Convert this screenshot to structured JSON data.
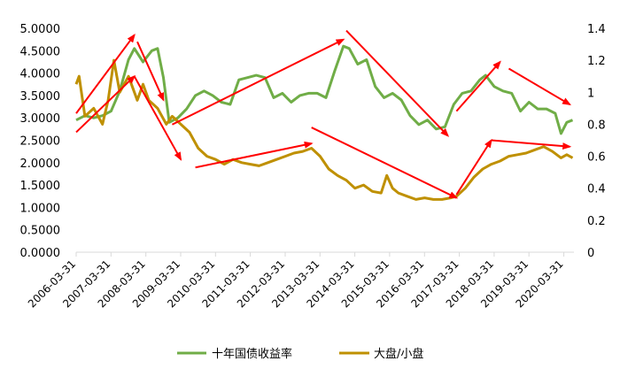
{
  "chart_data": {
    "type": "line",
    "x_ticks": [
      "2006-03-31",
      "2007-03-31",
      "2008-03-31",
      "2009-03-31",
      "2010-03-31",
      "2011-03-31",
      "2012-03-31",
      "2013-03-31",
      "2014-03-31",
      "2015-03-31",
      "2016-03-31",
      "2017-03-31",
      "2018-03-31",
      "2019-03-31",
      "2020-03-31"
    ],
    "y_left": {
      "ticks": [
        "0.0000",
        "0.5000",
        "1.0000",
        "1.5000",
        "2.0000",
        "2.5000",
        "3.0000",
        "3.5000",
        "4.0000",
        "4.5000",
        "5.0000"
      ],
      "range": [
        0,
        5
      ]
    },
    "y_right": {
      "ticks": [
        "0",
        "0.2",
        "0.4",
        "0.6",
        "0.8",
        "1",
        "1.2",
        "1.4"
      ],
      "range": [
        0,
        1.4
      ]
    },
    "series": [
      {
        "name": "十年国债收益率",
        "axis": "left",
        "color": "#70ad47",
        "points": [
          [
            "2006-03-31",
            2.95
          ],
          [
            "2006-07-01",
            3.05
          ],
          [
            "2006-10-01",
            3.0
          ],
          [
            "2007-01-01",
            3.05
          ],
          [
            "2007-04-01",
            3.15
          ],
          [
            "2007-07-01",
            3.6
          ],
          [
            "2007-10-01",
            4.3
          ],
          [
            "2007-12-01",
            4.55
          ],
          [
            "2008-03-01",
            4.25
          ],
          [
            "2008-06-01",
            4.5
          ],
          [
            "2008-08-01",
            4.55
          ],
          [
            "2008-10-01",
            3.9
          ],
          [
            "2008-12-01",
            2.9
          ],
          [
            "2009-03-01",
            3.0
          ],
          [
            "2009-06-01",
            3.2
          ],
          [
            "2009-09-01",
            3.5
          ],
          [
            "2009-12-01",
            3.6
          ],
          [
            "2010-03-01",
            3.5
          ],
          [
            "2010-06-01",
            3.35
          ],
          [
            "2010-09-01",
            3.3
          ],
          [
            "2010-12-01",
            3.85
          ],
          [
            "2011-03-01",
            3.9
          ],
          [
            "2011-06-01",
            3.95
          ],
          [
            "2011-09-01",
            3.9
          ],
          [
            "2011-12-01",
            3.45
          ],
          [
            "2012-03-01",
            3.55
          ],
          [
            "2012-06-01",
            3.35
          ],
          [
            "2012-09-01",
            3.5
          ],
          [
            "2012-12-01",
            3.55
          ],
          [
            "2013-03-01",
            3.55
          ],
          [
            "2013-06-01",
            3.45
          ],
          [
            "2013-09-01",
            4.05
          ],
          [
            "2013-12-01",
            4.6
          ],
          [
            "2014-02-01",
            4.55
          ],
          [
            "2014-05-01",
            4.2
          ],
          [
            "2014-08-01",
            4.3
          ],
          [
            "2014-11-01",
            3.7
          ],
          [
            "2015-02-01",
            3.45
          ],
          [
            "2015-05-01",
            3.55
          ],
          [
            "2015-08-01",
            3.4
          ],
          [
            "2015-11-01",
            3.05
          ],
          [
            "2016-02-01",
            2.85
          ],
          [
            "2016-05-01",
            2.95
          ],
          [
            "2016-08-01",
            2.75
          ],
          [
            "2016-11-01",
            2.8
          ],
          [
            "2017-02-01",
            3.3
          ],
          [
            "2017-05-01",
            3.55
          ],
          [
            "2017-08-01",
            3.6
          ],
          [
            "2017-11-01",
            3.85
          ],
          [
            "2018-01-01",
            3.95
          ],
          [
            "2018-04-01",
            3.7
          ],
          [
            "2018-07-01",
            3.6
          ],
          [
            "2018-10-01",
            3.55
          ],
          [
            "2019-01-01",
            3.15
          ],
          [
            "2019-04-01",
            3.35
          ],
          [
            "2019-07-01",
            3.2
          ],
          [
            "2019-10-01",
            3.2
          ],
          [
            "2020-01-01",
            3.1
          ],
          [
            "2020-03-01",
            2.65
          ],
          [
            "2020-05-01",
            2.9
          ],
          [
            "2020-07-01",
            2.95
          ]
        ]
      },
      {
        "name": "大盘/小盘",
        "axis": "right",
        "color": "#bf9000",
        "points": [
          [
            "2006-03-31",
            1.05
          ],
          [
            "2006-05-01",
            1.1
          ],
          [
            "2006-07-01",
            0.85
          ],
          [
            "2006-10-01",
            0.9
          ],
          [
            "2007-01-01",
            0.8
          ],
          [
            "2007-03-01",
            0.95
          ],
          [
            "2007-05-01",
            1.2
          ],
          [
            "2007-07-01",
            1.0
          ],
          [
            "2007-10-01",
            1.1
          ],
          [
            "2008-01-01",
            0.95
          ],
          [
            "2008-03-01",
            1.05
          ],
          [
            "2008-05-01",
            0.95
          ],
          [
            "2008-08-01",
            0.9
          ],
          [
            "2008-11-01",
            0.8
          ],
          [
            "2009-01-01",
            0.85
          ],
          [
            "2009-04-01",
            0.8
          ],
          [
            "2009-07-01",
            0.75
          ],
          [
            "2009-10-01",
            0.65
          ],
          [
            "2010-01-01",
            0.6
          ],
          [
            "2010-04-01",
            0.58
          ],
          [
            "2010-07-01",
            0.55
          ],
          [
            "2010-10-01",
            0.58
          ],
          [
            "2011-01-01",
            0.56
          ],
          [
            "2011-04-01",
            0.55
          ],
          [
            "2011-07-01",
            0.54
          ],
          [
            "2011-10-01",
            0.56
          ],
          [
            "2012-01-01",
            0.58
          ],
          [
            "2012-04-01",
            0.6
          ],
          [
            "2012-07-01",
            0.62
          ],
          [
            "2012-10-01",
            0.63
          ],
          [
            "2013-01-01",
            0.65
          ],
          [
            "2013-04-01",
            0.6
          ],
          [
            "2013-07-01",
            0.52
          ],
          [
            "2013-10-01",
            0.48
          ],
          [
            "2014-01-01",
            0.45
          ],
          [
            "2014-04-01",
            0.4
          ],
          [
            "2014-07-01",
            0.42
          ],
          [
            "2014-10-01",
            0.38
          ],
          [
            "2015-01-01",
            0.37
          ],
          [
            "2015-03-01",
            0.48
          ],
          [
            "2015-05-01",
            0.4
          ],
          [
            "2015-07-01",
            0.37
          ],
          [
            "2015-10-01",
            0.35
          ],
          [
            "2016-01-01",
            0.33
          ],
          [
            "2016-04-01",
            0.34
          ],
          [
            "2016-07-01",
            0.33
          ],
          [
            "2016-10-01",
            0.33
          ],
          [
            "2017-01-01",
            0.34
          ],
          [
            "2017-03-01",
            0.35
          ],
          [
            "2017-06-01",
            0.4
          ],
          [
            "2017-09-01",
            0.47
          ],
          [
            "2017-12-01",
            0.52
          ],
          [
            "2018-03-01",
            0.55
          ],
          [
            "2018-06-01",
            0.57
          ],
          [
            "2018-09-01",
            0.6
          ],
          [
            "2018-12-01",
            0.61
          ],
          [
            "2019-03-01",
            0.62
          ],
          [
            "2019-06-01",
            0.64
          ],
          [
            "2019-09-01",
            0.66
          ],
          [
            "2019-12-01",
            0.63
          ],
          [
            "2020-03-01",
            0.59
          ],
          [
            "2020-05-01",
            0.61
          ],
          [
            "2020-07-01",
            0.59
          ]
        ]
      }
    ],
    "legend": {
      "position": "bottom",
      "entries": [
        "十年国债收益率",
        "大盘/小盘"
      ]
    },
    "annotations": {
      "type": "trend-arrows",
      "color": "#ff0000",
      "arrows": [
        {
          "series": "十年国债收益率",
          "from": [
            "2006-03-31",
            3.1
          ],
          "to": [
            "2007-12-01",
            4.85
          ]
        },
        {
          "series": "十年国债收益率",
          "from": [
            "2008-01-01",
            4.7
          ],
          "to": [
            "2008-10-01",
            3.4
          ]
        },
        {
          "series": "十年国债收益率",
          "from": [
            "2009-01-01",
            2.85
          ],
          "to": [
            "2013-12-01",
            4.75
          ]
        },
        {
          "series": "十年国债收益率",
          "from": [
            "2014-01-01",
            4.95
          ],
          "to": [
            "2016-12-01",
            2.6
          ]
        },
        {
          "series": "十年国债收益率",
          "from": [
            "2017-03-01",
            3.15
          ],
          "to": [
            "2018-06-01",
            4.25
          ]
        },
        {
          "series": "十年国债收益率",
          "from": [
            "2018-09-01",
            4.1
          ],
          "to": [
            "2020-06-01",
            3.3
          ]
        },
        {
          "series": "大盘/小盘",
          "from": [
            "2006-03-31",
            0.75
          ],
          "to": [
            "2007-12-01",
            1.1
          ]
        },
        {
          "series": "大盘/小盘",
          "from": [
            "2007-12-01",
            1.1
          ],
          "to": [
            "2009-04-01",
            0.58
          ]
        },
        {
          "series": "大盘/小盘",
          "from": [
            "2009-09-01",
            0.53
          ],
          "to": [
            "2013-01-01",
            0.68
          ]
        },
        {
          "series": "大盘/小盘",
          "from": [
            "2013-01-01",
            0.78
          ],
          "to": [
            "2017-03-01",
            0.34
          ]
        },
        {
          "series": "大盘/小盘",
          "from": [
            "2017-03-01",
            0.36
          ],
          "to": [
            "2018-03-01",
            0.7
          ]
        },
        {
          "series": "大盘/小盘",
          "from": [
            "2018-03-01",
            0.7
          ],
          "to": [
            "2020-06-01",
            0.66
          ]
        }
      ]
    },
    "grid": false
  }
}
